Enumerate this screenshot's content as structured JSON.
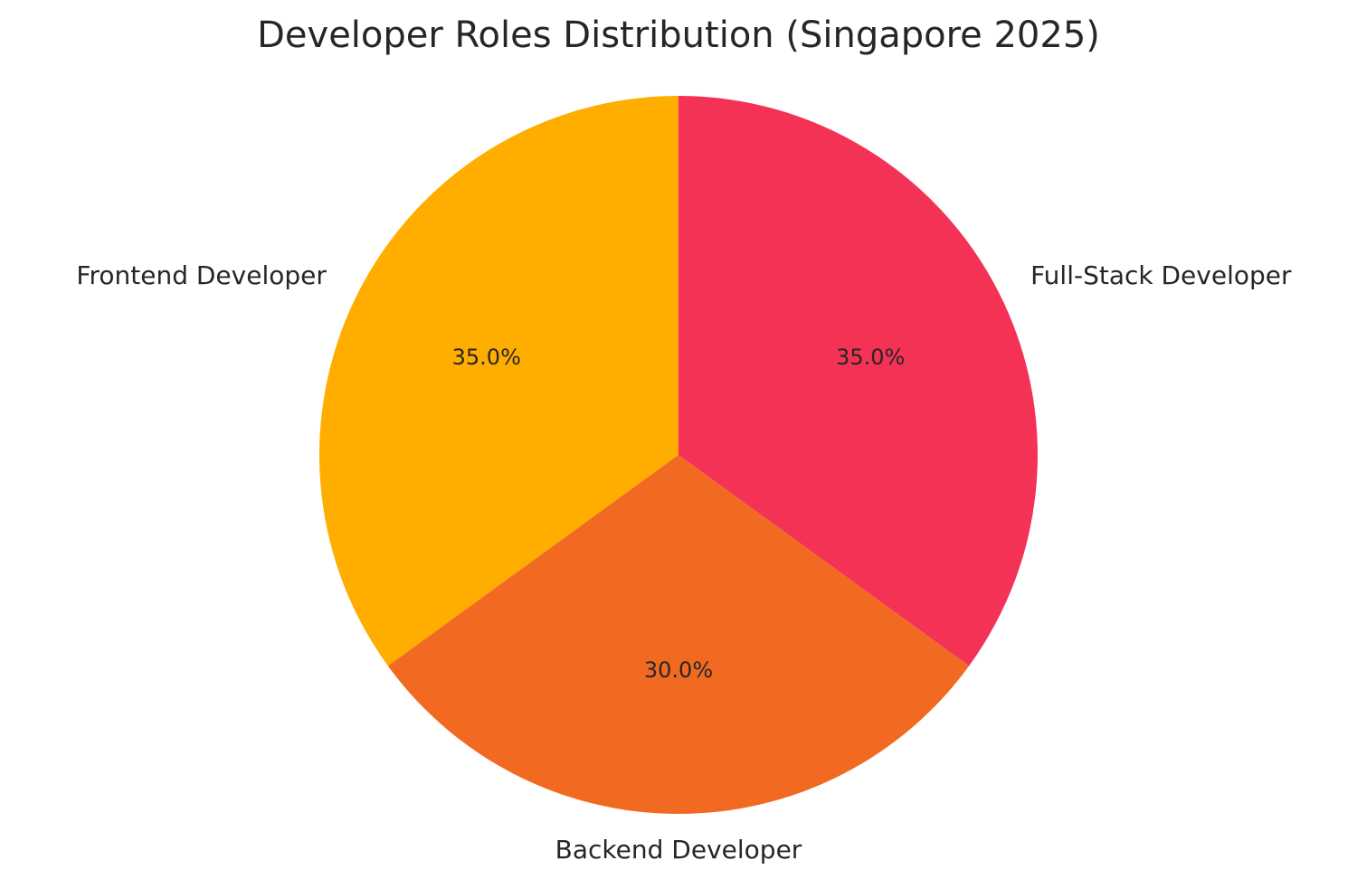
{
  "chart_data": {
    "type": "pie",
    "title": "Developer Roles Distribution (Singapore 2025)",
    "slices": [
      {
        "label": "Frontend Developer",
        "value": 35.0,
        "pct_text": "35.0%",
        "color": "#FFAE00"
      },
      {
        "label": "Backend Developer",
        "value": 30.0,
        "pct_text": "30.0%",
        "color": "#F26A21"
      },
      {
        "label": "Full-Stack Developer",
        "value": 35.0,
        "pct_text": "35.0%",
        "color": "#F43256"
      }
    ],
    "start_angle": "top",
    "direction": "counterclockwise",
    "legend": "none"
  }
}
